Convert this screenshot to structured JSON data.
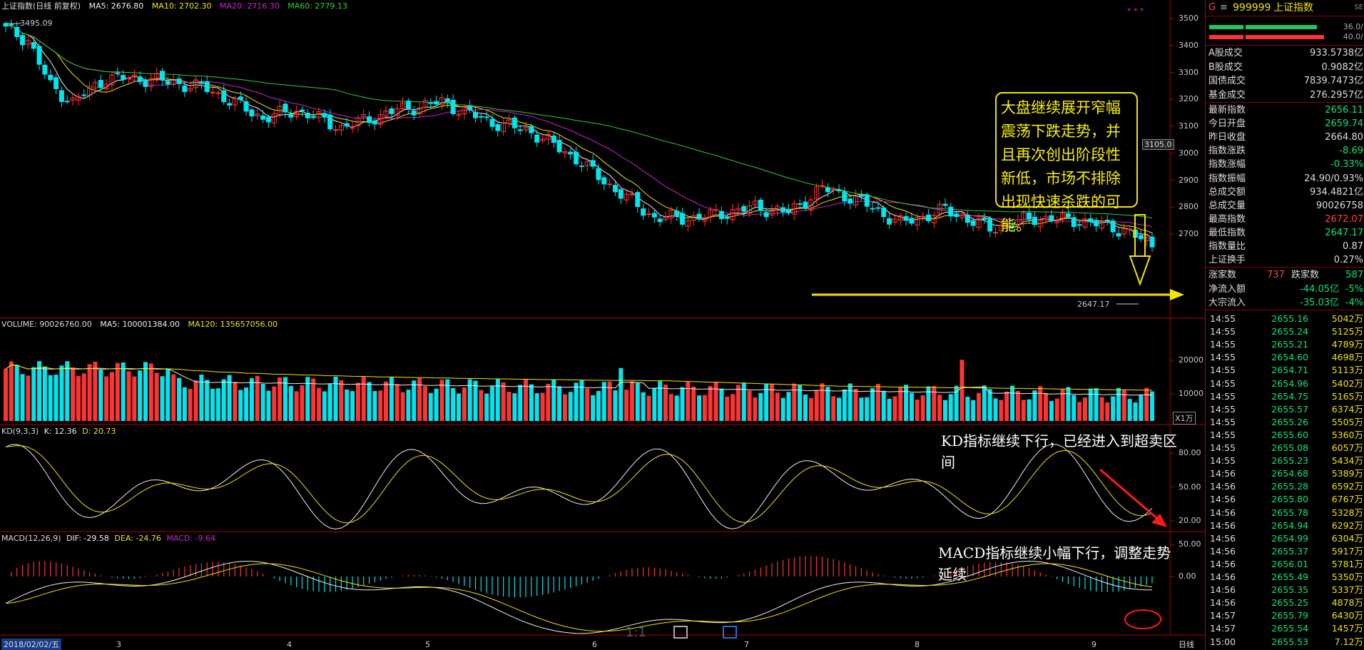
{
  "main_header": {
    "title": "上证指数(日线 前复权)",
    "ma5": "MA5: 2676.80",
    "ma10": "MA10: 2702.30",
    "ma20": "MA20: 2716.30",
    "ma60": "MA60: 2779.13",
    "stars": "* * *"
  },
  "price_axis": [
    "3500",
    "3400",
    "3300",
    "3200",
    "3100",
    "3000",
    "2900",
    "2800",
    "2700"
  ],
  "price_tag": "3105.0",
  "high_mark": "3495.09",
  "low_mark": "2647.17",
  "volume_header": {
    "title": "VOLUME: 90026760.00",
    "ma5": "MA5: 100001384.00",
    "ma120": "MA120: 135657056.00"
  },
  "volume_axis": [
    "20000",
    "10000"
  ],
  "volume_unit": "X1万",
  "kd_header": {
    "title": "KD(9,3,3)",
    "k": "K: 12.36",
    "d": "D: 20.73"
  },
  "kd_axis": [
    "80.00",
    "50.00",
    "20.00"
  ],
  "macd_header": {
    "title": "MACD(12,26,9)",
    "dif": "DIF: -29.58",
    "dea": "DEA: -24.76",
    "macd": "MACD: -9.64"
  },
  "macd_axis": [
    "50.00",
    "0.00"
  ],
  "date_bar": {
    "start": "2018/02/02/五",
    "months": [
      "3",
      "4",
      "5",
      "6",
      "7",
      "8",
      "9"
    ],
    "period": "日线"
  },
  "bottom_icons": {
    "ratio": "1:1"
  },
  "annotations": {
    "callout": "大盘继续展开窄幅震荡下跌走势，并且再次创出阶段性新低，市场不排除出现快速杀跌的可能。",
    "kd_note": "KD指标继续下行，已经进入到超卖区间",
    "macd_note": "MACD指标继续小幅下行，调整走势延续"
  },
  "colors": {
    "up": "#ff3333",
    "down": "#00e5ee",
    "ma5": "#f0f0f0",
    "ma10": "#f3e400",
    "ma20": "#d020d0",
    "ma60": "#33cc33"
  },
  "side": {
    "code_letter": "G",
    "code": "999999",
    "name": "上证指数",
    "id_suffix": "SE",
    "bar1_pct": "36.0/",
    "bar2_pct": "40.0/",
    "turnover": [
      {
        "label": "A股成交",
        "value": "933.5738亿"
      },
      {
        "label": "B股成交",
        "value": "0.9082亿"
      },
      {
        "label": "国债成交",
        "value": "7839.7473亿"
      },
      {
        "label": "基金成交",
        "value": "276.2957亿"
      }
    ],
    "stats": [
      {
        "label": "最新指数",
        "value": "2656.11",
        "cls": "dn"
      },
      {
        "label": "今日开盘",
        "value": "2659.74",
        "cls": "dn"
      },
      {
        "label": "昨日收盘",
        "value": "2664.80",
        "cls": "wh"
      },
      {
        "label": "指数涨跌",
        "value": "-8.69",
        "cls": "dn"
      },
      {
        "label": "指数涨幅",
        "value": "-0.33%",
        "cls": "dn"
      },
      {
        "label": "指数振幅",
        "value": "24.90/0.93%",
        "cls": "wh"
      },
      {
        "label": "总成交额",
        "value": "934.4821亿",
        "cls": "wh"
      },
      {
        "label": "总成交量",
        "value": "90026758",
        "cls": "wh"
      },
      {
        "label": "最高指数",
        "value": "2672.07",
        "cls": "up"
      },
      {
        "label": "最低指数",
        "value": "2647.17",
        "cls": "dn"
      },
      {
        "label": "指数量比",
        "value": "0.87",
        "cls": "wh"
      },
      {
        "label": "上证换手",
        "value": "0.27%",
        "cls": "wh"
      }
    ],
    "breadth": {
      "up_label": "涨家数",
      "up": "737",
      "down_label": "跌家数",
      "down": "587"
    },
    "flows": [
      {
        "label": "净流入额",
        "value": "-44.05亿",
        "pct": "-5%"
      },
      {
        "label": "大宗流入",
        "value": "-35.03亿",
        "pct": "-4%"
      }
    ],
    "ticks": [
      {
        "t": "14:55",
        "p": "2655.16",
        "q": "5042万"
      },
      {
        "t": "14:55",
        "p": "2655.24",
        "q": "5125万"
      },
      {
        "t": "14:55",
        "p": "2655.21",
        "q": "4789万"
      },
      {
        "t": "14:55",
        "p": "2654.60",
        "q": "4698万"
      },
      {
        "t": "14:55",
        "p": "2654.71",
        "q": "5113万"
      },
      {
        "t": "14:55",
        "p": "2654.96",
        "q": "5402万"
      },
      {
        "t": "14:55",
        "p": "2654.75",
        "q": "5165万"
      },
      {
        "t": "14:55",
        "p": "2655.57",
        "q": "6374万"
      },
      {
        "t": "14:55",
        "p": "2655.26",
        "q": "5505万"
      },
      {
        "t": "14:55",
        "p": "2655.60",
        "q": "5360万"
      },
      {
        "t": "14:55",
        "p": "2655.08",
        "q": "6057万"
      },
      {
        "t": "14:55",
        "p": "2655.23",
        "q": "5434万"
      },
      {
        "t": "14:56",
        "p": "2654.68",
        "q": "5389万"
      },
      {
        "t": "14:56",
        "p": "2655.28",
        "q": "6592万"
      },
      {
        "t": "14:56",
        "p": "2655.80",
        "q": "6767万"
      },
      {
        "t": "14:56",
        "p": "2655.78",
        "q": "5328万"
      },
      {
        "t": "14:56",
        "p": "2654.94",
        "q": "6292万"
      },
      {
        "t": "14:56",
        "p": "2654.99",
        "q": "6304万"
      },
      {
        "t": "14:56",
        "p": "2655.37",
        "q": "5917万"
      },
      {
        "t": "14:56",
        "p": "2656.01",
        "q": "5781万"
      },
      {
        "t": "14:56",
        "p": "2655.49",
        "q": "5350万"
      },
      {
        "t": "14:56",
        "p": "2655.35",
        "q": "5337万"
      },
      {
        "t": "14:56",
        "p": "2655.25",
        "q": "4878万"
      },
      {
        "t": "14:57",
        "p": "2655.79",
        "q": "6430万"
      },
      {
        "t": "14:57",
        "p": "2655.54",
        "q": "1457万"
      },
      {
        "t": "15:00",
        "p": "2655.53",
        "q": "7.12万"
      }
    ]
  }
}
